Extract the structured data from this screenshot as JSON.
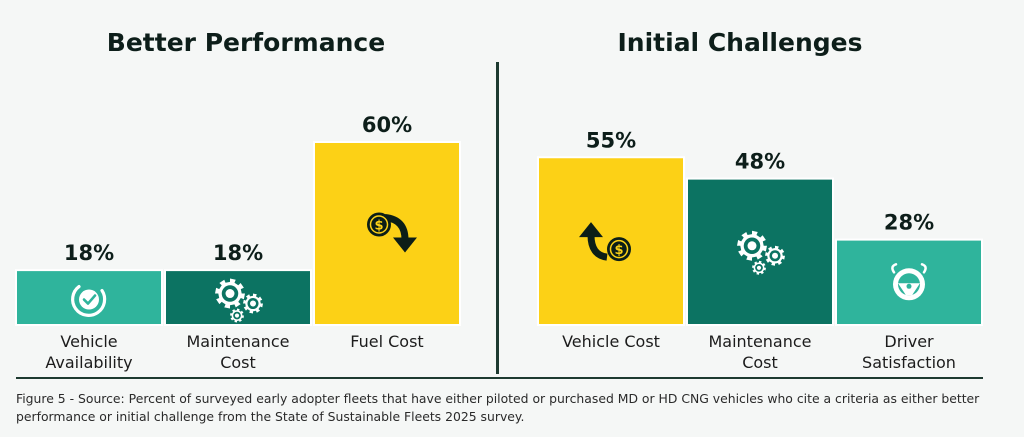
{
  "chart_data": [
    {
      "type": "bar",
      "title": "Better Performance",
      "categories": [
        "Vehicle Availability",
        "Maintenance Cost",
        "Fuel Cost"
      ],
      "category_lines": [
        [
          "Vehicle",
          "Availability"
        ],
        [
          "Maintenance",
          "Cost"
        ],
        [
          "Fuel Cost"
        ]
      ],
      "values": [
        18,
        18,
        60
      ],
      "labels": [
        "18%",
        "18%",
        "60%"
      ],
      "colors": [
        "#2fb49c",
        "#0c7362",
        "#fcd116"
      ],
      "icons": [
        "check-circle-icon",
        "gears-icon",
        "dollar-down-arrow-icon"
      ],
      "ylim": [
        0,
        100
      ]
    },
    {
      "type": "bar",
      "title": "Initial Challenges",
      "categories": [
        "Vehicle Cost",
        "Maintenance Cost",
        "Driver Satisfaction"
      ],
      "category_lines": [
        [
          "Vehicle Cost"
        ],
        [
          "Maintenance",
          "Cost"
        ],
        [
          "Driver",
          "Satisfaction"
        ]
      ],
      "values": [
        55,
        48,
        28
      ],
      "labels": [
        "55%",
        "48%",
        "28%"
      ],
      "colors": [
        "#fcd116",
        "#0c7362",
        "#2fb49c"
      ],
      "icons": [
        "dollar-up-arrow-icon",
        "gears-icon",
        "steering-wheel-icon"
      ],
      "ylim": [
        0,
        100
      ]
    }
  ],
  "caption": "Figure 5 - Source: Percent of surveyed early adopter fleets that have either piloted or purchased MD or HD CNG vehicles who cite a criteria as either better performance or initial challenge from the State of Sustainable Fleets 2025 survey."
}
